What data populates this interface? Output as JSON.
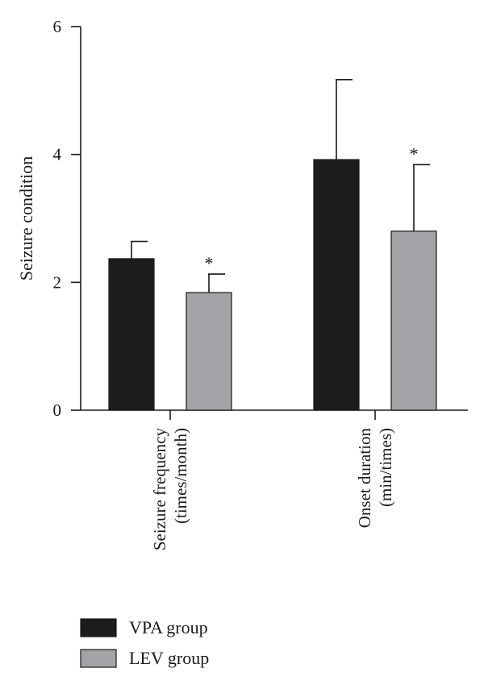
{
  "chart_data": {
    "type": "bar",
    "categories": [
      [
        "Seizure frequency",
        "(times/month)"
      ],
      [
        "Onset duration",
        "(min/times)"
      ]
    ],
    "series": [
      {
        "name": "VPA group",
        "color": "#1c1c1c",
        "values": [
          2.37,
          3.92
        ],
        "error": [
          0.27,
          1.25
        ],
        "annotations": [
          "",
          ""
        ]
      },
      {
        "name": "LEV group",
        "color": "#a3a3a8",
        "values": [
          1.84,
          2.8
        ],
        "error": [
          0.29,
          1.04
        ],
        "annotations": [
          "*",
          "*"
        ]
      }
    ],
    "ylabel": "Seizure condition",
    "xlabel": "",
    "ylim": [
      0,
      6
    ],
    "yticks": [
      0,
      2,
      4,
      6
    ],
    "grid": false,
    "legend_position": "bottom-left"
  }
}
